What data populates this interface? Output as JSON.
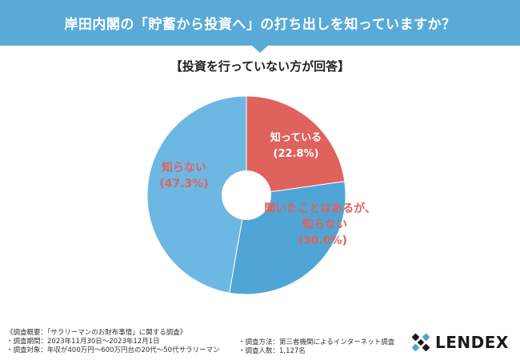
{
  "header": {
    "title": "岸田内閣の「貯蓄から投資へ」の打ち出しを知っていますか？"
  },
  "colors": {
    "header_bg": "#5aaad8",
    "slice_known": "#e0625d",
    "slice_heard": "#4fa6d6",
    "slice_unknown": "#6cb8e3",
    "label_red": "#e0625d",
    "label_blue": "#2f8fcf"
  },
  "chart_data": {
    "type": "pie",
    "title": "【投資を行っていない方が回答】",
    "donut_hole": true,
    "slices": [
      {
        "label": "知っている",
        "value": 22.8,
        "value_text": "(22.8%)",
        "color": "#e0625d"
      },
      {
        "label": "聞いたことはあるが、\n知らない",
        "value": 30.0,
        "value_text": "(30.0%)",
        "color": "#4fa6d6"
      },
      {
        "label": "知らない",
        "value": 47.3,
        "value_text": "(47.3%)",
        "color": "#6cb8e3"
      }
    ]
  },
  "footer": {
    "left_lines": [
      "《調査概要：「サラリーマンのお財布事情」に関する調査》",
      "・調査期間：2023年11月30日〜2023年12月1日",
      "・調査対象：年収が400万円〜600万円台の20代〜50代サラリーマン"
    ],
    "right_lines": [
      "・調査方法：第三者機関によるインターネット調査",
      "・調査人数：1,127名"
    ]
  },
  "logo": {
    "text": "LENDEX",
    "icon": "lendex-mark-icon"
  }
}
